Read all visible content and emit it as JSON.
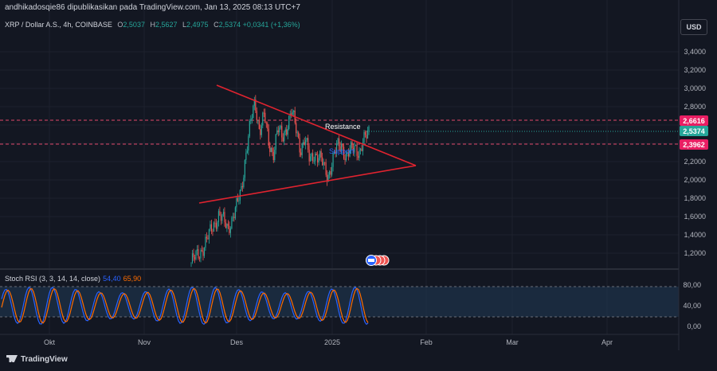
{
  "header": {
    "publisher_line": "andhikadosqie86 dipublikasikan pada TradingView.com, Jan 13, 2025 08:13 UTC+7"
  },
  "legend": {
    "symbol": "XRP / Dollar A.S., 4h, COINBASE",
    "open_label": "O",
    "open": "2,5037",
    "high_label": "H",
    "high": "2,5627",
    "low_label": "L",
    "low": "2,4975",
    "close_label": "C",
    "close": "2,5374",
    "change": "+0,0341 (+1,36%)"
  },
  "currency_button": "USD",
  "price_tags": {
    "upper": "2,6616",
    "current": "2,5374",
    "lower": "2,3962"
  },
  "annotations": {
    "resistance": "Resistance",
    "support": "Support"
  },
  "rsi_panel": {
    "title": "Stoch RSI (3, 3, 14, 14, close)",
    "k_value": "54,40",
    "d_value": "65,90",
    "levels": [
      80,
      20
    ],
    "ticks": [
      "80,00",
      "40,00",
      "0,00"
    ]
  },
  "footer": {
    "brand": "TradingView"
  },
  "colors": {
    "background": "#131722",
    "up": "#26a69a",
    "down": "#ef5350",
    "trendline": "#e0232f",
    "k_line": "#2962ff",
    "d_line": "#ff6d00",
    "rsi_band": "#1e3148"
  },
  "chart_data": {
    "type": "line",
    "y_ticks": [
      "3,4000",
      "3,2000",
      "3,0000",
      "2,8000",
      "2,6000",
      "2,4000",
      "2,2000",
      "2,0000",
      "1,8000",
      "1,6000",
      "1,4000",
      "1,2000"
    ],
    "y_tick_values": [
      3.4,
      3.2,
      3.0,
      2.8,
      2.6,
      2.4,
      2.2,
      2.0,
      1.8,
      1.6,
      1.4,
      1.2
    ],
    "x_ticks": [
      "Okt",
      "Nov",
      "Des",
      "2025",
      "Feb",
      "Mar",
      "Apr"
    ],
    "ylim": [
      1.05,
      3.6
    ],
    "horizontal_levels": [
      2.6616,
      2.3962
    ],
    "price_path": [
      [
        0.0,
        1.1
      ],
      [
        0.02,
        1.15
      ],
      [
        0.04,
        1.22
      ],
      [
        0.06,
        1.3
      ],
      [
        0.08,
        1.4
      ],
      [
        0.1,
        1.52
      ],
      [
        0.12,
        1.62
      ],
      [
        0.14,
        1.55
      ],
      [
        0.16,
        1.48
      ],
      [
        0.18,
        1.58
      ],
      [
        0.2,
        1.7
      ],
      [
        0.22,
        1.9
      ],
      [
        0.24,
        2.3
      ],
      [
        0.26,
        2.6
      ],
      [
        0.28,
        2.85
      ],
      [
        0.3,
        2.55
      ],
      [
        0.32,
        2.7
      ],
      [
        0.34,
        2.4
      ],
      [
        0.36,
        2.3
      ],
      [
        0.38,
        2.55
      ],
      [
        0.4,
        2.45
      ],
      [
        0.42,
        2.6
      ],
      [
        0.44,
        2.75
      ],
      [
        0.46,
        2.55
      ],
      [
        0.48,
        2.35
      ],
      [
        0.5,
        2.45
      ],
      [
        0.52,
        2.2
      ],
      [
        0.54,
        2.3
      ],
      [
        0.56,
        2.25
      ],
      [
        0.58,
        2.15
      ],
      [
        0.6,
        2.05
      ],
      [
        0.62,
        2.2
      ],
      [
        0.64,
        2.35
      ],
      [
        0.66,
        2.4
      ],
      [
        0.68,
        2.25
      ],
      [
        0.7,
        2.3
      ],
      [
        0.72,
        2.38
      ],
      [
        0.74,
        2.3
      ],
      [
        0.76,
        2.42
      ],
      [
        0.78,
        2.55
      ]
    ],
    "trendlines": [
      {
        "name": "resistance",
        "from": [
          0.0,
          3.05
        ],
        "to": [
          1.0,
          2.15
        ]
      },
      {
        "name": "support",
        "from": [
          0.0,
          1.75
        ],
        "to": [
          1.0,
          2.15
        ]
      }
    ]
  }
}
